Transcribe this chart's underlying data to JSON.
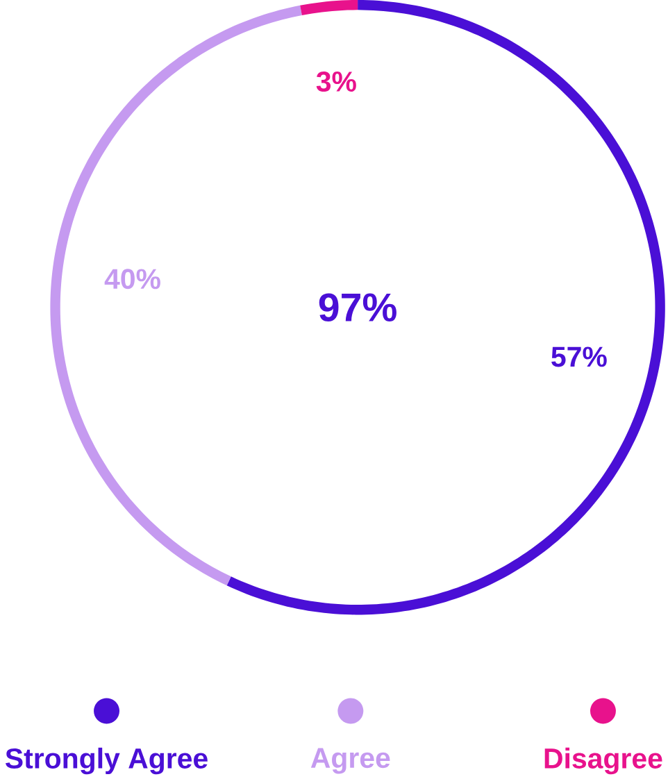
{
  "chart_data": {
    "type": "donut",
    "categories": [
      "Strongly Agree",
      "Agree",
      "Disagree"
    ],
    "values": [
      57,
      40,
      3
    ],
    "colors": [
      "#4a0fd6",
      "#c59af0",
      "#e8128c"
    ],
    "value_labels": [
      "57%",
      "40%",
      "3%"
    ],
    "annotations": [
      "97%"
    ],
    "legend": "bottom"
  }
}
